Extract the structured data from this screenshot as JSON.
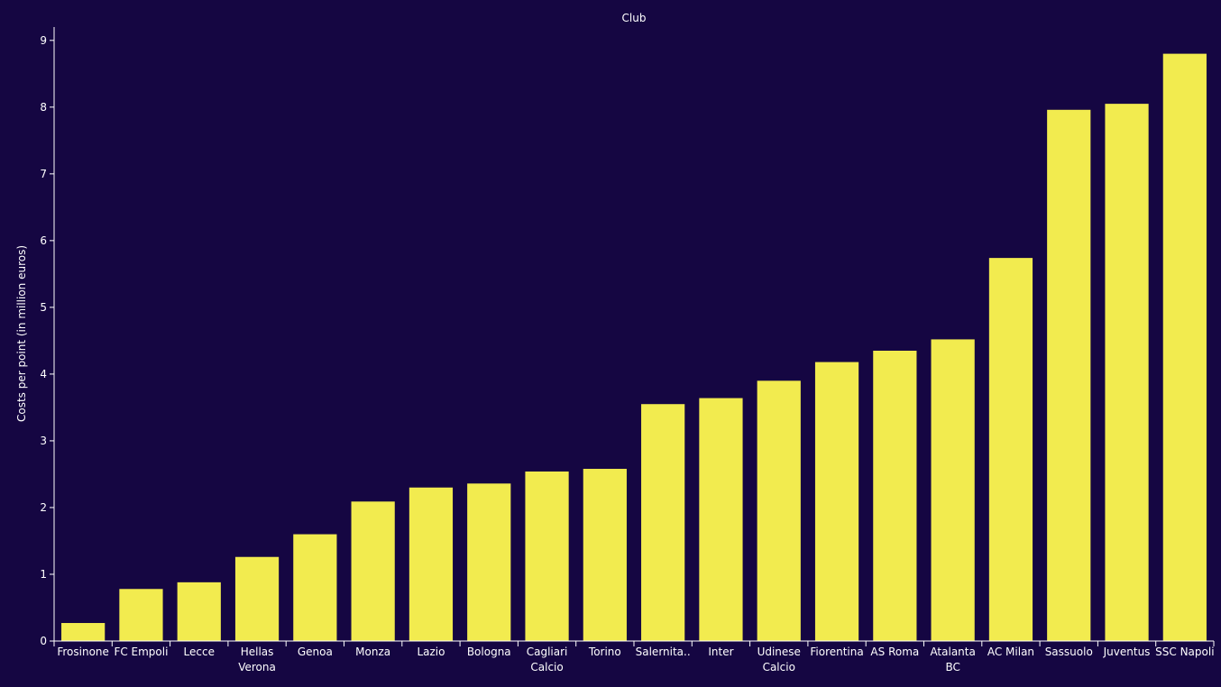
{
  "colors": {
    "background": "#150642",
    "bar": "#f2eb4f",
    "axis": "#ffffff",
    "text": "#ffffff"
  },
  "chart_data": {
    "type": "bar",
    "title": "Club",
    "xlabel": "",
    "ylabel": "Costs per point (in million euros)",
    "ylim": [
      0,
      9.2
    ],
    "yticks": [
      "0",
      "1",
      "2",
      "3",
      "4",
      "5",
      "6",
      "7",
      "8",
      "9"
    ],
    "grid": false,
    "categories": [
      "Frosinone",
      "FC Empoli",
      "Lecce",
      "Hellas Verona",
      "Genoa",
      "Monza",
      "Lazio",
      "Bologna",
      "Cagliari Calcio",
      "Torino",
      "Salernita..",
      "Inter",
      "Udinese Calcio",
      "Fiorentina",
      "AS Roma",
      "Atalanta BC",
      "AC Milan",
      "Sassuolo",
      "Juventus",
      "SSC Napoli"
    ],
    "category_lines": [
      [
        "Frosinone"
      ],
      [
        "FC Empoli"
      ],
      [
        "Lecce"
      ],
      [
        "Hellas",
        "Verona"
      ],
      [
        "Genoa"
      ],
      [
        "Monza"
      ],
      [
        "Lazio"
      ],
      [
        "Bologna"
      ],
      [
        "Cagliari",
        "Calcio"
      ],
      [
        "Torino"
      ],
      [
        "Salernita.."
      ],
      [
        "Inter"
      ],
      [
        "Udinese",
        "Calcio"
      ],
      [
        "Fiorentina"
      ],
      [
        "AS Roma"
      ],
      [
        "Atalanta",
        "BC"
      ],
      [
        "AC Milan"
      ],
      [
        "Sassuolo"
      ],
      [
        "Juventus"
      ],
      [
        "SSC Napoli"
      ]
    ],
    "values": [
      0.27,
      0.78,
      0.88,
      1.26,
      1.6,
      2.09,
      2.3,
      2.36,
      2.54,
      2.58,
      3.55,
      3.64,
      3.9,
      4.18,
      4.35,
      4.52,
      5.74,
      7.96,
      8.05,
      8.8
    ]
  }
}
